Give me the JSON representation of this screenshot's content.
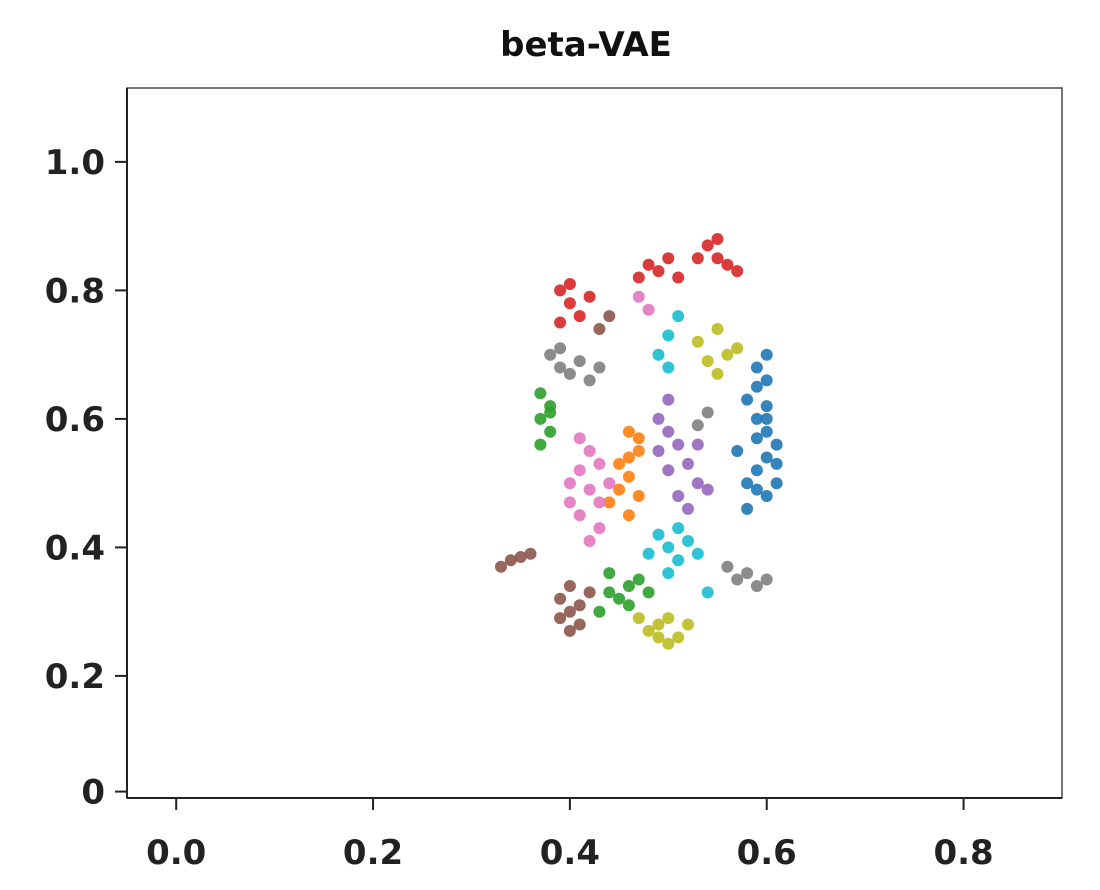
{
  "chart_data": {
    "type": "scatter",
    "title": "beta-VAE",
    "xlabel": "",
    "ylabel": "",
    "xlim": [
      -0.05,
      0.9
    ],
    "ylim": [
      0.01,
      1.115
    ],
    "grid": false,
    "legend": "none",
    "x_ticks": [
      {
        "value": 0.0,
        "label": "0.0"
      },
      {
        "value": 0.2,
        "label": "0.2"
      },
      {
        "value": 0.4,
        "label": "0.4"
      },
      {
        "value": 0.6,
        "label": "0.6"
      },
      {
        "value": 0.8,
        "label": "0.8"
      }
    ],
    "y_ticks": [
      {
        "value": 0.02,
        "label": "0"
      },
      {
        "value": 0.2,
        "label": "0.2"
      },
      {
        "value": 0.4,
        "label": "0.4"
      },
      {
        "value": 0.6,
        "label": "0.6"
      },
      {
        "value": 0.8,
        "label": "0.8"
      },
      {
        "value": 1.0,
        "label": "1.0"
      }
    ],
    "series": [
      {
        "color": "#1f77b4",
        "points": [
          [
            0.59,
            0.68
          ],
          [
            0.6,
            0.7
          ],
          [
            0.59,
            0.65
          ],
          [
            0.6,
            0.62
          ],
          [
            0.59,
            0.6
          ],
          [
            0.6,
            0.58
          ],
          [
            0.61,
            0.56
          ],
          [
            0.6,
            0.54
          ],
          [
            0.59,
            0.52
          ],
          [
            0.61,
            0.5
          ],
          [
            0.6,
            0.48
          ],
          [
            0.58,
            0.46
          ],
          [
            0.59,
            0.57
          ],
          [
            0.58,
            0.63
          ],
          [
            0.6,
            0.66
          ],
          [
            0.61,
            0.53
          ],
          [
            0.59,
            0.49
          ],
          [
            0.57,
            0.55
          ],
          [
            0.6,
            0.6
          ],
          [
            0.58,
            0.5
          ]
        ]
      },
      {
        "color": "#ff7f0e",
        "points": [
          [
            0.46,
            0.58
          ],
          [
            0.47,
            0.55
          ],
          [
            0.45,
            0.53
          ],
          [
            0.46,
            0.51
          ],
          [
            0.47,
            0.48
          ],
          [
            0.46,
            0.45
          ],
          [
            0.45,
            0.49
          ],
          [
            0.47,
            0.57
          ],
          [
            0.46,
            0.54
          ],
          [
            0.44,
            0.47
          ]
        ]
      },
      {
        "color": "#2ca02c",
        "points": [
          [
            0.37,
            0.64
          ],
          [
            0.38,
            0.62
          ],
          [
            0.37,
            0.6
          ],
          [
            0.38,
            0.58
          ],
          [
            0.37,
            0.56
          ],
          [
            0.38,
            0.61
          ],
          [
            0.44,
            0.36
          ],
          [
            0.46,
            0.34
          ],
          [
            0.45,
            0.32
          ],
          [
            0.47,
            0.35
          ],
          [
            0.43,
            0.3
          ],
          [
            0.46,
            0.31
          ],
          [
            0.48,
            0.33
          ],
          [
            0.44,
            0.33
          ]
        ]
      },
      {
        "color": "#d62728",
        "points": [
          [
            0.39,
            0.8
          ],
          [
            0.4,
            0.78
          ],
          [
            0.41,
            0.76
          ],
          [
            0.4,
            0.81
          ],
          [
            0.42,
            0.79
          ],
          [
            0.39,
            0.75
          ],
          [
            0.48,
            0.84
          ],
          [
            0.5,
            0.85
          ],
          [
            0.49,
            0.83
          ],
          [
            0.51,
            0.82
          ],
          [
            0.47,
            0.82
          ],
          [
            0.54,
            0.87
          ],
          [
            0.55,
            0.85
          ],
          [
            0.56,
            0.84
          ],
          [
            0.57,
            0.83
          ],
          [
            0.55,
            0.88
          ],
          [
            0.53,
            0.85
          ]
        ]
      },
      {
        "color": "#9467bd",
        "points": [
          [
            0.49,
            0.6
          ],
          [
            0.5,
            0.58
          ],
          [
            0.51,
            0.56
          ],
          [
            0.52,
            0.53
          ],
          [
            0.5,
            0.52
          ],
          [
            0.53,
            0.5
          ],
          [
            0.51,
            0.48
          ],
          [
            0.52,
            0.46
          ],
          [
            0.54,
            0.49
          ],
          [
            0.49,
            0.55
          ],
          [
            0.53,
            0.56
          ],
          [
            0.5,
            0.63
          ]
        ]
      },
      {
        "color": "#8c564b",
        "points": [
          [
            0.33,
            0.37
          ],
          [
            0.34,
            0.38
          ],
          [
            0.35,
            0.385
          ],
          [
            0.36,
            0.39
          ],
          [
            0.4,
            0.34
          ],
          [
            0.39,
            0.32
          ],
          [
            0.4,
            0.3
          ],
          [
            0.41,
            0.28
          ],
          [
            0.4,
            0.27
          ],
          [
            0.39,
            0.29
          ],
          [
            0.41,
            0.31
          ],
          [
            0.42,
            0.33
          ],
          [
            0.43,
            0.74
          ],
          [
            0.44,
            0.76
          ]
        ]
      },
      {
        "color": "#e377c2",
        "points": [
          [
            0.42,
            0.55
          ],
          [
            0.41,
            0.52
          ],
          [
            0.42,
            0.49
          ],
          [
            0.4,
            0.47
          ],
          [
            0.41,
            0.45
          ],
          [
            0.43,
            0.43
          ],
          [
            0.42,
            0.41
          ],
          [
            0.4,
            0.5
          ],
          [
            0.43,
            0.53
          ],
          [
            0.44,
            0.5
          ],
          [
            0.41,
            0.57
          ],
          [
            0.43,
            0.47
          ],
          [
            0.47,
            0.79
          ],
          [
            0.48,
            0.77
          ]
        ]
      },
      {
        "color": "#7f7f7f",
        "points": [
          [
            0.38,
            0.7
          ],
          [
            0.39,
            0.68
          ],
          [
            0.4,
            0.67
          ],
          [
            0.41,
            0.69
          ],
          [
            0.42,
            0.66
          ],
          [
            0.43,
            0.68
          ],
          [
            0.39,
            0.71
          ],
          [
            0.58,
            0.36
          ],
          [
            0.59,
            0.34
          ],
          [
            0.57,
            0.35
          ],
          [
            0.56,
            0.37
          ],
          [
            0.6,
            0.35
          ],
          [
            0.53,
            0.59
          ],
          [
            0.54,
            0.61
          ]
        ]
      },
      {
        "color": "#bcbd22",
        "points": [
          [
            0.48,
            0.27
          ],
          [
            0.49,
            0.26
          ],
          [
            0.5,
            0.25
          ],
          [
            0.51,
            0.26
          ],
          [
            0.49,
            0.28
          ],
          [
            0.5,
            0.29
          ],
          [
            0.52,
            0.28
          ],
          [
            0.47,
            0.29
          ],
          [
            0.53,
            0.72
          ],
          [
            0.55,
            0.74
          ],
          [
            0.56,
            0.7
          ],
          [
            0.54,
            0.69
          ],
          [
            0.57,
            0.71
          ],
          [
            0.55,
            0.67
          ]
        ]
      },
      {
        "color": "#17becf",
        "points": [
          [
            0.49,
            0.42
          ],
          [
            0.5,
            0.4
          ],
          [
            0.51,
            0.38
          ],
          [
            0.52,
            0.41
          ],
          [
            0.5,
            0.36
          ],
          [
            0.53,
            0.39
          ],
          [
            0.48,
            0.39
          ],
          [
            0.51,
            0.43
          ],
          [
            0.54,
            0.33
          ],
          [
            0.49,
            0.7
          ],
          [
            0.5,
            0.73
          ],
          [
            0.51,
            0.76
          ],
          [
            0.5,
            0.68
          ]
        ]
      }
    ]
  }
}
